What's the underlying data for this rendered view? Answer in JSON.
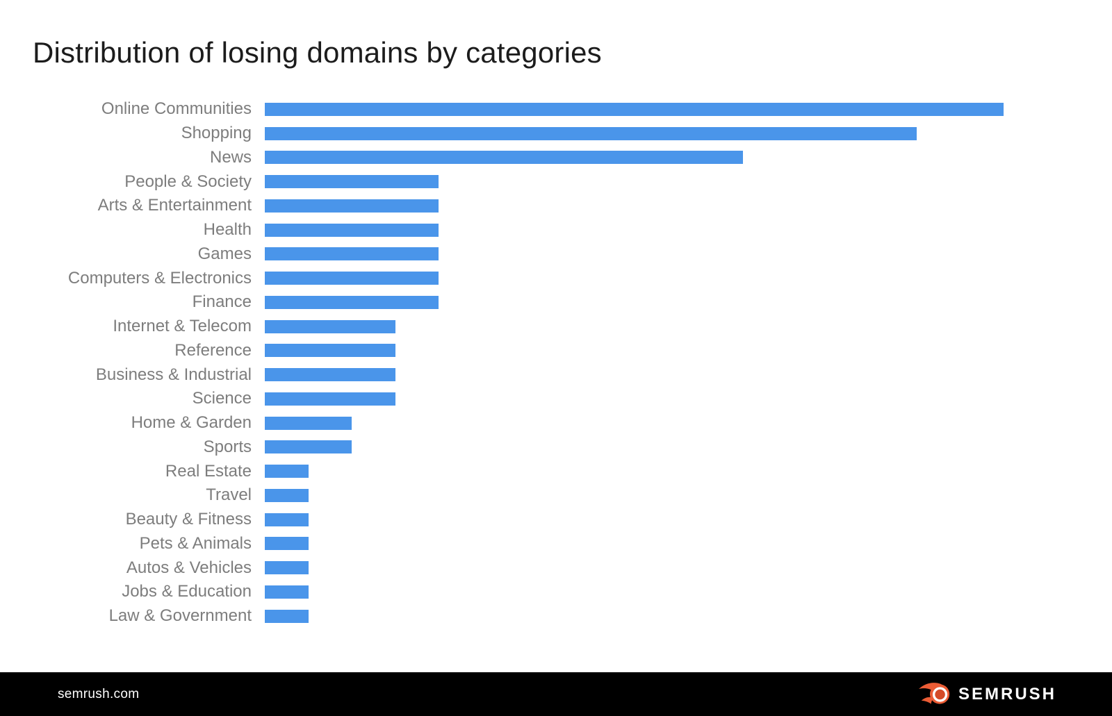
{
  "chart_data": {
    "type": "bar",
    "orientation": "horizontal",
    "title": "Distribution of losing domains by categories",
    "categories": [
      "Online Communities",
      "Shopping",
      "News",
      "People & Society",
      "Arts & Entertainment",
      "Health",
      "Games",
      "Computers & Electronics",
      "Finance",
      "Internet & Telecom",
      "Reference",
      "Business & Industrial",
      "Science",
      "Home & Garden",
      "Sports",
      "Real Estate",
      "Travel",
      "Beauty & Fitness",
      "Pets & Animals",
      "Autos & Vehicles",
      "Jobs & Education",
      "Law & Government"
    ],
    "values": [
      17,
      15,
      11,
      4,
      4,
      4,
      4,
      4,
      4,
      3,
      3,
      3,
      3,
      2,
      2,
      1,
      1,
      1,
      1,
      1,
      1,
      1
    ],
    "xlabel": "",
    "ylabel": "",
    "xlim": [
      0,
      17.2
    ],
    "grid": false,
    "value_axis_visible": false,
    "legend": "none",
    "bar_color": "#4a95ea",
    "label_color": "#7d7d7d",
    "title_color": "#1c1c1c"
  },
  "footer": {
    "site_label": "semrush.com",
    "brand_wordmark": "SEMRUSH",
    "background": "#000000",
    "text_color": "#ffffff",
    "logo_orange": "#eb5c35",
    "logo_orange_dark": "#d44a27"
  }
}
